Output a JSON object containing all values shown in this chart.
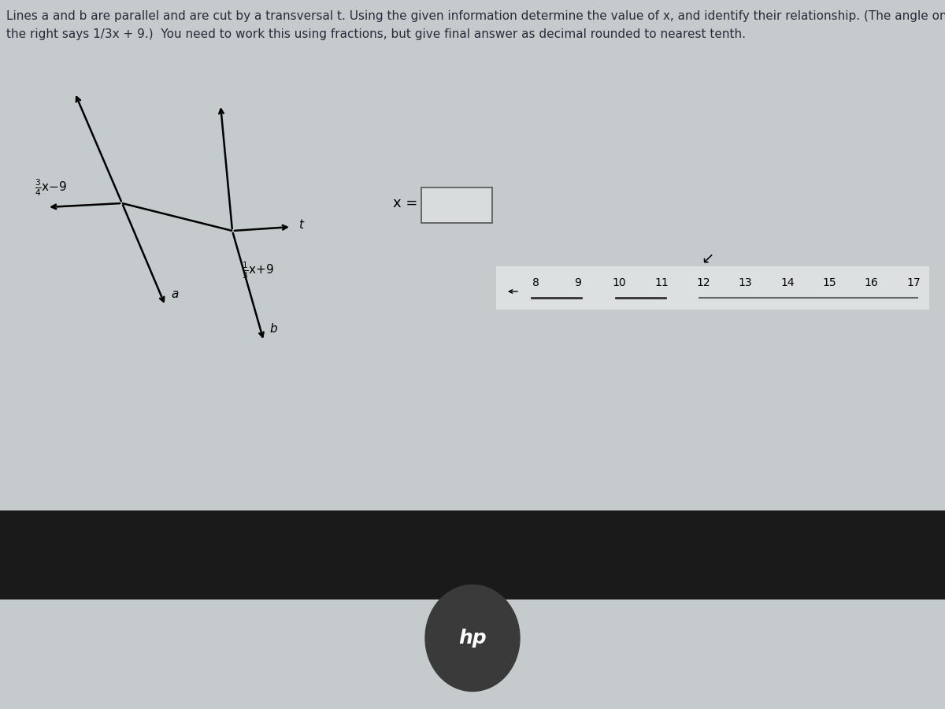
{
  "title_line1": "Lines a and b are parallel and are cut by a transversal t. Using the given information determine the value of x, and identify their relationship. (The angle on",
  "title_line2": "the right says 1/3x + 9.)  You need to work this using fractions, but give final answer as decimal rounded to nearest tenth.",
  "bg_color_top": "#c5cbcc",
  "bg_color_paper": "#d8dcdc",
  "title_color": "#2a2a3a",
  "title_fontsize": 11.0,
  "ruler_numbers": [
    8,
    9,
    10,
    11,
    12,
    13,
    14,
    15,
    16,
    17
  ]
}
